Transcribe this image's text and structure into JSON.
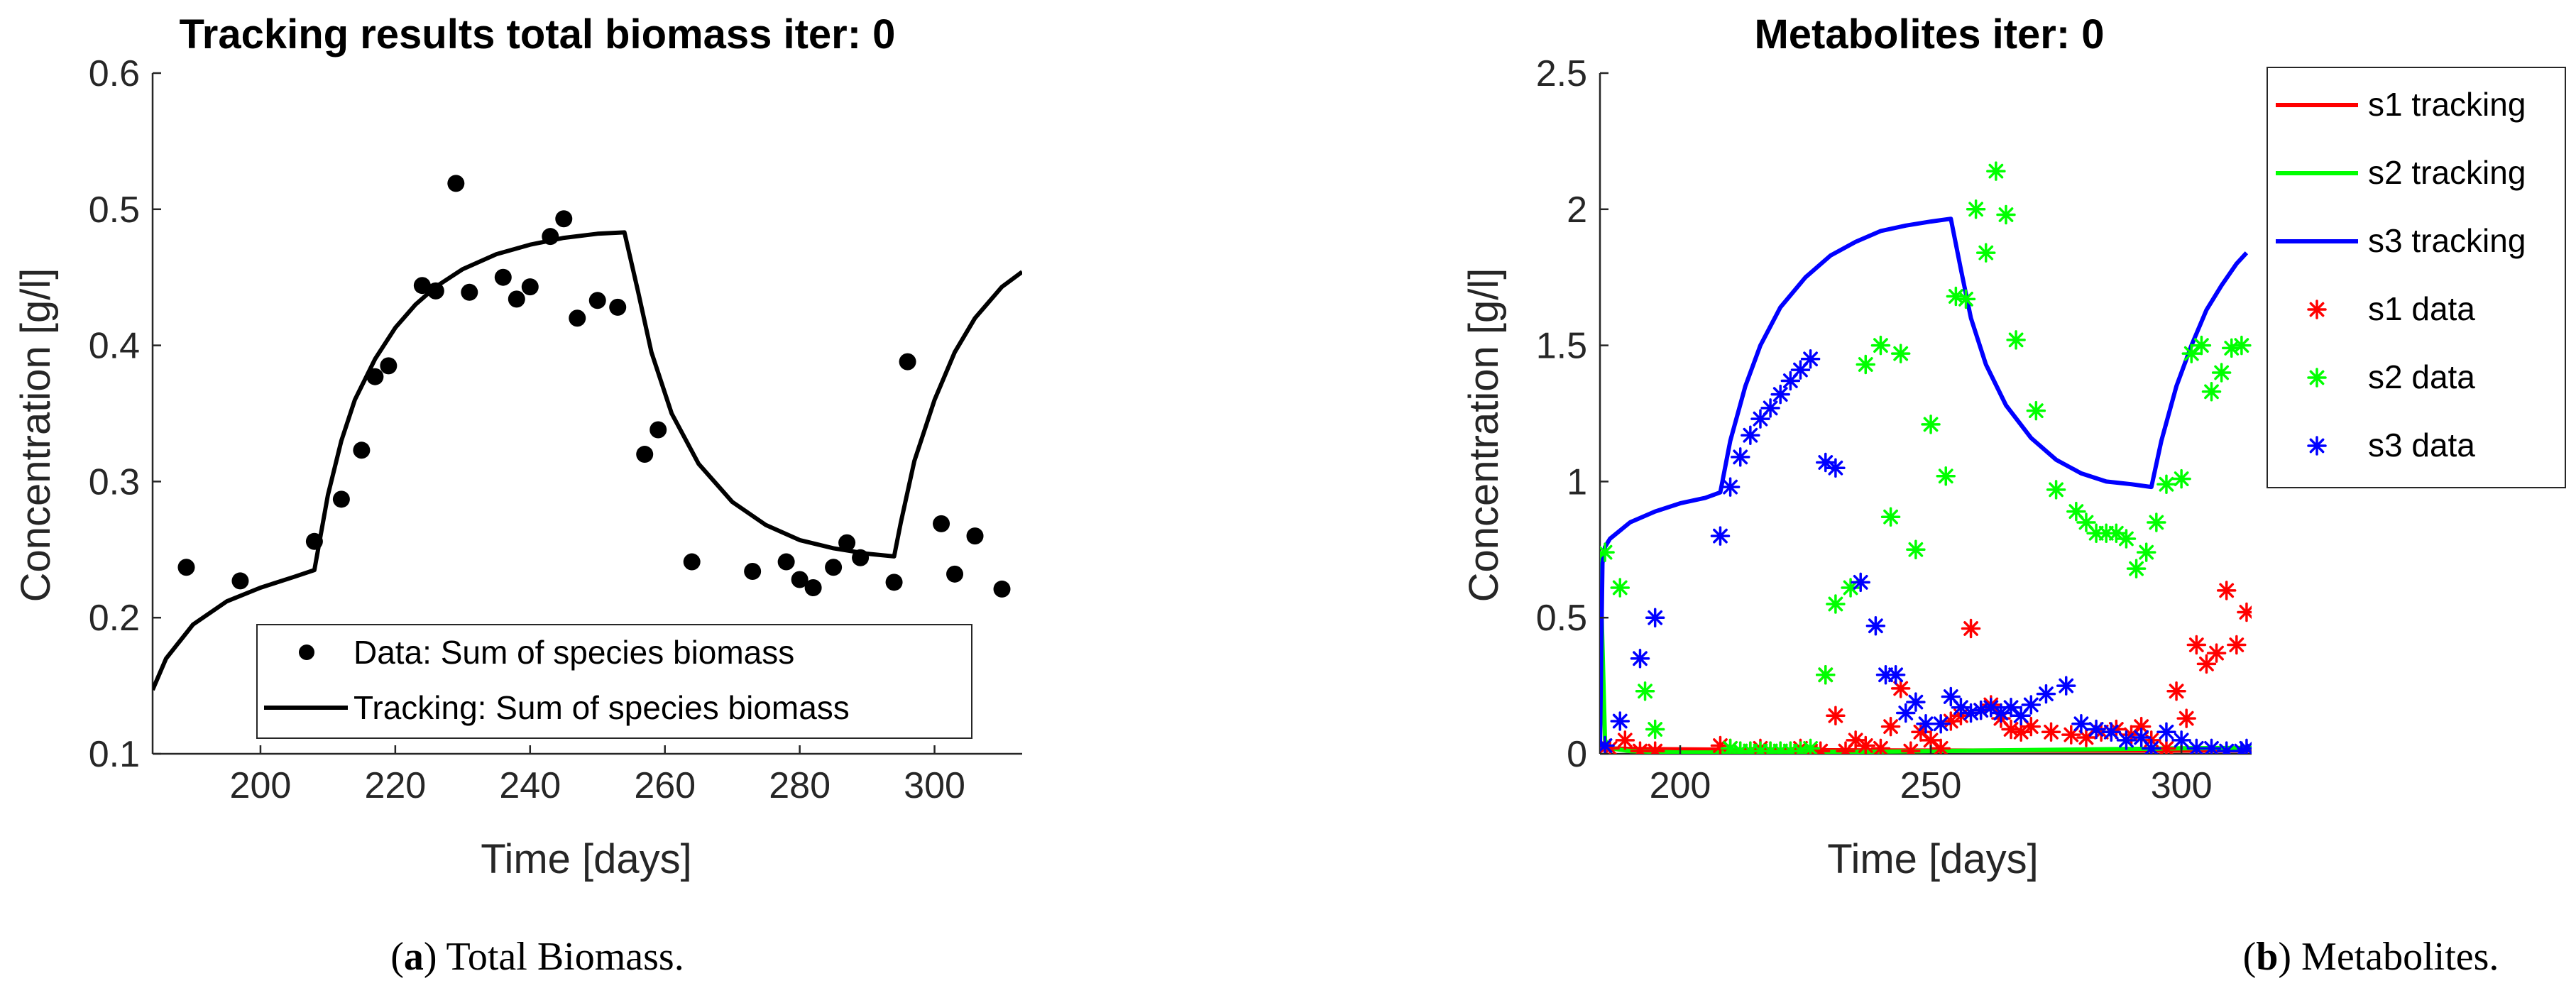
{
  "chart_data": [
    {
      "type": "line",
      "title": "Tracking results total biomass iter: 0",
      "xlabel": "Time [days]",
      "ylabel": "Concentration [g/l]",
      "xlim": [
        184,
        313
      ],
      "ylim": [
        0.1,
        0.6
      ],
      "xticks": [
        200,
        220,
        240,
        260,
        280,
        300
      ],
      "yticks": [
        0.1,
        0.2,
        0.3,
        0.4,
        0.5,
        0.6
      ],
      "xtick_labels": [
        "200",
        "220",
        "240",
        "260",
        "280",
        "300"
      ],
      "ytick_labels": [
        "0.1",
        "0.2",
        "0.3",
        "0.4",
        "0.5",
        "0.6"
      ],
      "legend_placement": "bottom-center",
      "grid": false,
      "caption": {
        "label": "a",
        "text": "Total Biomass."
      },
      "series": [
        {
          "name": "Data: Sum of species biomass",
          "kind": "scatter",
          "marker": "dot",
          "color": "#000000",
          "x": [
            189,
            197,
            208,
            212,
            215,
            217,
            219,
            224,
            226,
            229,
            231,
            236,
            238,
            240,
            243,
            245,
            247,
            250,
            253,
            257,
            259,
            264,
            273,
            278,
            280,
            282,
            285,
            287,
            289,
            294,
            296,
            301,
            303,
            306,
            310
          ],
          "y": [
            0.237,
            0.227,
            0.256,
            0.287,
            0.323,
            0.377,
            0.385,
            0.444,
            0.44,
            0.519,
            0.439,
            0.45,
            0.434,
            0.443,
            0.48,
            0.493,
            0.42,
            0.433,
            0.428,
            0.32,
            0.338,
            0.241,
            0.234,
            0.241,
            0.228,
            0.222,
            0.237,
            0.255,
            0.244,
            0.226,
            0.388,
            0.269,
            0.232,
            0.26,
            0.221
          ]
        },
        {
          "name": "Tracking: Sum of species biomass",
          "kind": "line",
          "color": "#000000",
          "x": [
            184,
            186,
            190,
            195,
            200,
            205,
            208,
            210,
            212,
            214,
            217,
            220,
            223,
            226,
            230,
            235,
            240,
            245,
            250,
            254,
            256,
            258,
            261,
            265,
            270,
            275,
            280,
            285,
            290,
            294,
            295,
            297,
            300,
            303,
            306,
            310,
            313
          ],
          "y": [
            0.147,
            0.17,
            0.195,
            0.212,
            0.222,
            0.23,
            0.235,
            0.29,
            0.33,
            0.36,
            0.39,
            0.413,
            0.43,
            0.443,
            0.456,
            0.467,
            0.474,
            0.479,
            0.482,
            0.483,
            0.44,
            0.395,
            0.35,
            0.313,
            0.285,
            0.268,
            0.257,
            0.251,
            0.247,
            0.245,
            0.27,
            0.315,
            0.36,
            0.395,
            0.42,
            0.443,
            0.454
          ]
        }
      ]
    },
    {
      "type": "line",
      "title": "Metabolites iter: 0",
      "xlabel": "Time [days]",
      "ylabel": "Concentration [g/l]",
      "xlim": [
        184,
        314
      ],
      "ylim": [
        0,
        2.5
      ],
      "xticks": [
        200,
        250,
        300
      ],
      "yticks": [
        0,
        0.5,
        1,
        1.5,
        2,
        2.5
      ],
      "xtick_labels": [
        "200",
        "250",
        "300"
      ],
      "ytick_labels": [
        "0",
        "0.5",
        "1",
        "1.5",
        "2",
        "2.5"
      ],
      "legend_placement": "outside-right",
      "grid": false,
      "caption": {
        "label": "b",
        "text": "Metabolites."
      },
      "series": [
        {
          "name": "s1 tracking",
          "sym": "s",
          "sub": "1",
          "suffix": "tracking",
          "kind": "line",
          "color": "#ff0000",
          "x": [
            184,
            185,
            190,
            210,
            230,
            250,
            270,
            294,
            300,
            314
          ],
          "y": [
            0.01,
            0.02,
            0.018,
            0.015,
            0.013,
            0.012,
            0.012,
            0.012,
            0.012,
            0.012
          ]
        },
        {
          "name": "s2 tracking",
          "sym": "s",
          "sub": "2",
          "suffix": "tracking",
          "kind": "line",
          "color": "#00ff00",
          "x": [
            184,
            185,
            186,
            190,
            200,
            208,
            220,
            240,
            260,
            280,
            300,
            314
          ],
          "y": [
            0.74,
            0.05,
            0.02,
            0.01,
            0.005,
            0.005,
            0.006,
            0.008,
            0.012,
            0.016,
            0.02,
            0.022
          ]
        },
        {
          "name": "s3 tracking",
          "sym": "s",
          "sub": "3",
          "suffix": "tracking",
          "kind": "line",
          "color": "#0000ff",
          "x": [
            184,
            184.5,
            185,
            186,
            190,
            195,
            200,
            205,
            208,
            210,
            213,
            216,
            220,
            225,
            230,
            235,
            240,
            245,
            250,
            254,
            256,
            258,
            261,
            265,
            270,
            275,
            280,
            285,
            290,
            294,
            296,
            299,
            302,
            305,
            308,
            311,
            313
          ],
          "y": [
            0.02,
            0.7,
            0.76,
            0.79,
            0.85,
            0.89,
            0.92,
            0.94,
            0.96,
            1.15,
            1.35,
            1.5,
            1.64,
            1.75,
            1.83,
            1.88,
            1.92,
            1.94,
            1.955,
            1.965,
            1.78,
            1.6,
            1.43,
            1.28,
            1.16,
            1.08,
            1.03,
            1.0,
            0.99,
            0.98,
            1.15,
            1.35,
            1.5,
            1.63,
            1.72,
            1.8,
            1.84
          ]
        },
        {
          "name": "s1 data",
          "sym": "s",
          "sub": "1",
          "suffix": "data",
          "kind": "scatter",
          "marker": "asterisk",
          "color": "#ff0000",
          "x": [
            186,
            189,
            192,
            195,
            208,
            210,
            212,
            214,
            216,
            218,
            220,
            222,
            224,
            226,
            228,
            229,
            231,
            233,
            235,
            237,
            240,
            242,
            244,
            246,
            248,
            250,
            252,
            254,
            256,
            258,
            260,
            262,
            264,
            266,
            268,
            270,
            274,
            278,
            281,
            284,
            287,
            290,
            292,
            294,
            297,
            299,
            301,
            303,
            305,
            307,
            309,
            311,
            313
          ],
          "y": [
            0.02,
            0.05,
            0.01,
            0.01,
            0.03,
            0.02,
            0.01,
            0.01,
            0.02,
            0.01,
            0.01,
            0.01,
            0.02,
            0.01,
            0.01,
            0.29,
            0.14,
            0.01,
            0.05,
            0.03,
            0.02,
            0.1,
            0.24,
            0.01,
            0.08,
            0.05,
            0.02,
            0.12,
            0.14,
            0.46,
            0.16,
            0.18,
            0.13,
            0.09,
            0.08,
            0.1,
            0.08,
            0.07,
            0.06,
            0.08,
            0.09,
            0.07,
            0.1,
            0.05,
            0.02,
            0.23,
            0.13,
            0.4,
            0.33,
            0.37,
            0.6,
            0.4,
            0.52
          ]
        },
        {
          "name": "s2 data",
          "sym": "s",
          "sub": "2",
          "suffix": "data",
          "kind": "scatter",
          "marker": "asterisk",
          "color": "#00ff00",
          "x": [
            185,
            188,
            193,
            195,
            210,
            212,
            214,
            216,
            218,
            220,
            222,
            224,
            226,
            229,
            231,
            234,
            237,
            240,
            242,
            244,
            247,
            250,
            253,
            255,
            257,
            259,
            261,
            263,
            265,
            267,
            271,
            275,
            279,
            281,
            283,
            285,
            287,
            289,
            291,
            293,
            295,
            297,
            300,
            302,
            304,
            306,
            308,
            310,
            312
          ],
          "y": [
            0.74,
            0.61,
            0.23,
            0.09,
            0.02,
            0.01,
            0.01,
            0.01,
            0.01,
            0.01,
            0.01,
            0.01,
            0.02,
            0.29,
            0.55,
            0.61,
            1.43,
            1.5,
            0.87,
            1.47,
            0.75,
            1.21,
            1.02,
            1.68,
            1.67,
            2.0,
            1.84,
            2.14,
            1.98,
            1.52,
            1.26,
            0.97,
            0.89,
            0.85,
            0.81,
            0.81,
            0.81,
            0.79,
            0.68,
            0.74,
            0.85,
            0.99,
            1.01,
            1.47,
            1.5,
            1.33,
            1.4,
            1.49,
            1.5
          ]
        },
        {
          "name": "s3 data",
          "sym": "s",
          "sub": "3",
          "suffix": "data",
          "kind": "scatter",
          "marker": "asterisk",
          "color": "#0000ff",
          "x": [
            185,
            188,
            192,
            195,
            208,
            210,
            212,
            214,
            216,
            218,
            220,
            222,
            224,
            226,
            229,
            231,
            236,
            239,
            241,
            243,
            245,
            247,
            249,
            252,
            254,
            256,
            258,
            260,
            262,
            264,
            266,
            268,
            270,
            273,
            277,
            280,
            283,
            286,
            289,
            292,
            294,
            297,
            300,
            303,
            306,
            309,
            312,
            313
          ],
          "y": [
            0.03,
            0.12,
            0.35,
            0.5,
            0.8,
            0.98,
            1.09,
            1.17,
            1.23,
            1.27,
            1.32,
            1.37,
            1.41,
            1.45,
            1.07,
            1.05,
            0.63,
            0.47,
            0.29,
            0.29,
            0.15,
            0.19,
            0.11,
            0.11,
            0.21,
            0.17,
            0.15,
            0.16,
            0.17,
            0.15,
            0.17,
            0.14,
            0.18,
            0.22,
            0.25,
            0.11,
            0.09,
            0.08,
            0.05,
            0.06,
            0.02,
            0.08,
            0.05,
            0.02,
            0.02,
            0.01,
            0.01,
            0.02
          ]
        }
      ]
    }
  ]
}
